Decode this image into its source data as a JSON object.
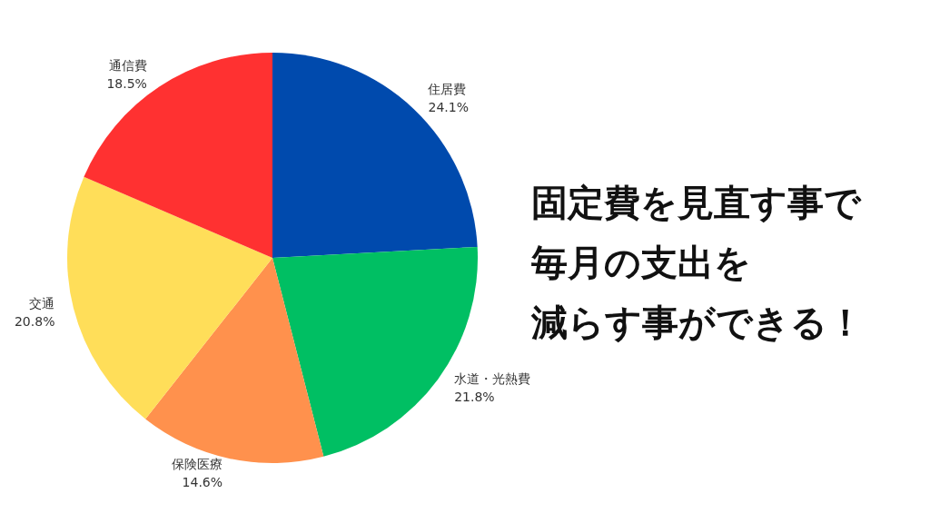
{
  "chart_data": {
    "type": "pie",
    "categories": [
      "住居費",
      "水道・光熱費",
      "保険医療",
      "交通",
      "通信費"
    ],
    "values": [
      24.1,
      21.8,
      14.6,
      20.8,
      18.5
    ],
    "value_labels": [
      "24.1%",
      "21.8%",
      "14.6%",
      "20.8%",
      "18.5%"
    ],
    "colors": [
      "#004aad",
      "#00bf63",
      "#ff914d",
      "#ffde59",
      "#ff3131"
    ],
    "legend": false,
    "annotations": [
      "固定費を見直す事で",
      "毎月の支出を",
      "減らす事ができる！"
    ]
  }
}
